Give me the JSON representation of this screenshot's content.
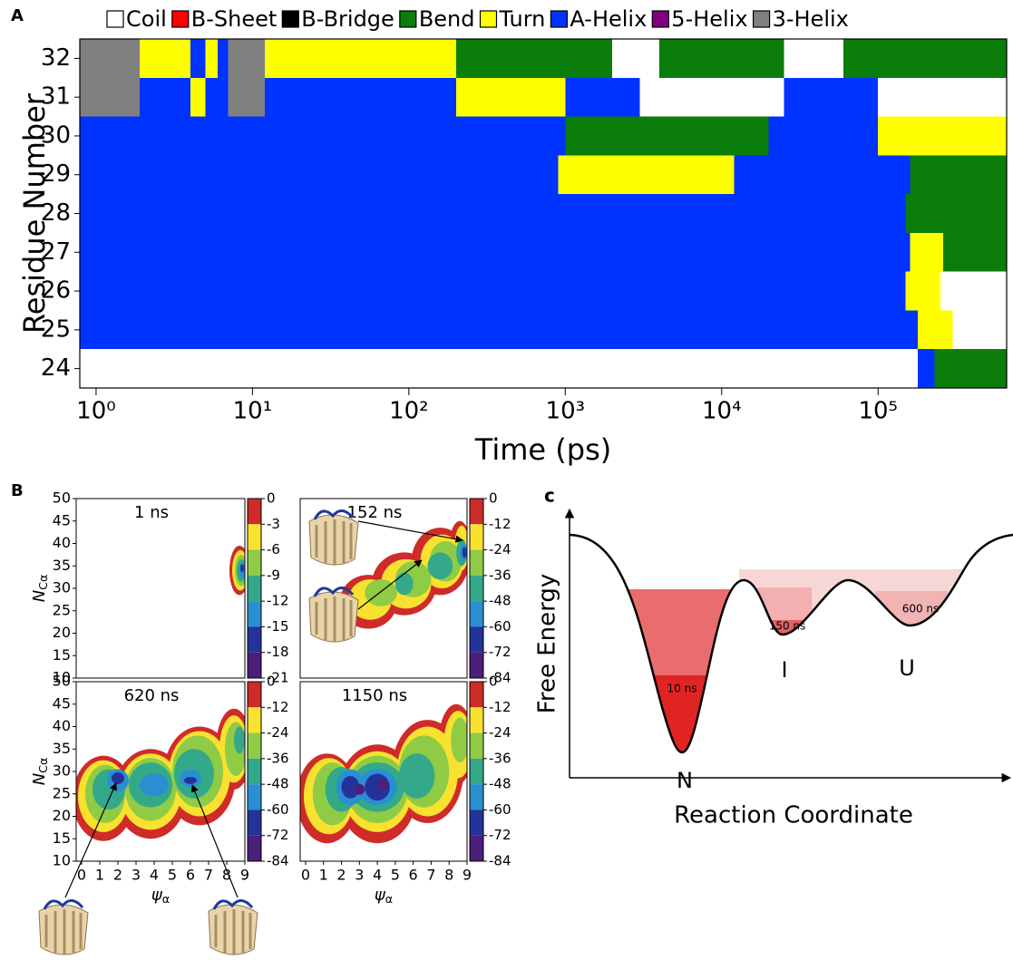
{
  "chart_data": [
    {
      "type": "heatmap",
      "panel_label": "A",
      "y_label": "Residue Number",
      "x_label": "Time (ps)",
      "log_x": true,
      "xlim": [
        0.787,
        664000
      ],
      "xticks": [
        {
          "value": 1,
          "label": "10⁰"
        },
        {
          "value": 10,
          "label": "10¹"
        },
        {
          "value": 100,
          "label": "10²"
        },
        {
          "value": 1000,
          "label": "10³"
        },
        {
          "value": 10000,
          "label": "10⁴"
        },
        {
          "value": 100000,
          "label": "10⁵"
        }
      ],
      "ylim": [
        23.5,
        32.5
      ],
      "yticks": [
        24,
        25,
        26,
        27,
        28,
        29,
        30,
        31,
        32
      ],
      "legend": {
        "labels": [
          "Coil",
          "B-Sheet",
          "B-Bridge",
          "Bend",
          "Turn",
          "A-Helix",
          "5-Helix",
          "3-Helix"
        ],
        "colors": [
          "#ffffff",
          "#ff0000",
          "#000000",
          "#0a7d0a",
          "#ffff00",
          "#0033ff",
          "#800080",
          "#808080"
        ]
      },
      "rows": [
        {
          "residue": 24,
          "segments": [
            {
              "start": 0.787,
              "end": 180000,
              "state": "Coil"
            },
            {
              "start": 180000,
              "end": 230000,
              "state": "A-Helix"
            },
            {
              "start": 230000,
              "end": 664000,
              "state": "Bend"
            }
          ]
        },
        {
          "residue": 25,
          "segments": [
            {
              "start": 0.787,
              "end": 180000,
              "state": "A-Helix"
            },
            {
              "start": 180000,
              "end": 300000,
              "state": "Turn"
            },
            {
              "start": 300000,
              "end": 664000,
              "state": "Coil"
            }
          ]
        },
        {
          "residue": 26,
          "segments": [
            {
              "start": 0.787,
              "end": 150000,
              "state": "A-Helix"
            },
            {
              "start": 150000,
              "end": 250000,
              "state": "Turn"
            },
            {
              "start": 250000,
              "end": 664000,
              "state": "Coil"
            }
          ]
        },
        {
          "residue": 27,
          "segments": [
            {
              "start": 0.787,
              "end": 160000,
              "state": "A-Helix"
            },
            {
              "start": 160000,
              "end": 260000,
              "state": "Turn"
            },
            {
              "start": 260000,
              "end": 664000,
              "state": "Bend"
            }
          ]
        },
        {
          "residue": 28,
          "segments": [
            {
              "start": 0.787,
              "end": 150000,
              "state": "A-Helix"
            },
            {
              "start": 150000,
              "end": 664000,
              "state": "Bend"
            }
          ]
        },
        {
          "residue": 29,
          "segments": [
            {
              "start": 0.787,
              "end": 900,
              "state": "A-Helix"
            },
            {
              "start": 900,
              "end": 12000,
              "state": "Turn"
            },
            {
              "start": 12000,
              "end": 160000,
              "state": "A-Helix"
            },
            {
              "start": 160000,
              "end": 664000,
              "state": "Bend"
            }
          ]
        },
        {
          "residue": 30,
          "segments": [
            {
              "start": 0.787,
              "end": 1000,
              "state": "A-Helix"
            },
            {
              "start": 1000,
              "end": 20000,
              "state": "Bend"
            },
            {
              "start": 20000,
              "end": 100000,
              "state": "A-Helix"
            },
            {
              "start": 100000,
              "end": 664000,
              "state": "Turn"
            }
          ]
        },
        {
          "residue": 31,
          "segments": [
            {
              "start": 0.787,
              "end": 1.9,
              "state": "3-Helix"
            },
            {
              "start": 1.9,
              "end": 4,
              "state": "A-Helix"
            },
            {
              "start": 4,
              "end": 5,
              "state": "Turn"
            },
            {
              "start": 5,
              "end": 7,
              "state": "A-Helix"
            },
            {
              "start": 7,
              "end": 12,
              "state": "3-Helix"
            },
            {
              "start": 12,
              "end": 200,
              "state": "A-Helix"
            },
            {
              "start": 200,
              "end": 1000,
              "state": "Turn"
            },
            {
              "start": 1000,
              "end": 3000,
              "state": "A-Helix"
            },
            {
              "start": 3000,
              "end": 25000,
              "state": "Coil"
            },
            {
              "start": 25000,
              "end": 100000,
              "state": "A-Helix"
            },
            {
              "start": 100000,
              "end": 664000,
              "state": "Coil"
            }
          ]
        },
        {
          "residue": 32,
          "segments": [
            {
              "start": 0.787,
              "end": 1.9,
              "state": "3-Helix"
            },
            {
              "start": 1.9,
              "end": 4,
              "state": "Turn"
            },
            {
              "start": 4,
              "end": 5,
              "state": "A-Helix"
            },
            {
              "start": 5,
              "end": 6,
              "state": "Turn"
            },
            {
              "start": 6,
              "end": 7,
              "state": "A-Helix"
            },
            {
              "start": 7,
              "end": 12,
              "state": "3-Helix"
            },
            {
              "start": 12,
              "end": 200,
              "state": "Turn"
            },
            {
              "start": 200,
              "end": 2000,
              "state": "Bend"
            },
            {
              "start": 2000,
              "end": 4000,
              "state": "Coil"
            },
            {
              "start": 4000,
              "end": 25000,
              "state": "Bend"
            },
            {
              "start": 25000,
              "end": 60000,
              "state": "Coil"
            },
            {
              "start": 60000,
              "end": 664000,
              "state": "Bend"
            }
          ]
        }
      ]
    },
    {
      "type": "contour",
      "panel_label": "B",
      "title": "1 ns",
      "y_label": "N",
      "y_label_sub": "Cα",
      "xlim": [
        -0.3,
        9
      ],
      "ylim": [
        10,
        50
      ],
      "yticks": [
        10,
        15,
        20,
        25,
        30,
        35,
        40,
        45,
        50
      ],
      "clim": [
        -21,
        0
      ],
      "cticks": [
        0,
        -3,
        -6,
        -9,
        -12,
        -15,
        -18,
        -21
      ],
      "colors": [
        "#cf2b28",
        "#f8e22f",
        "#8fcb45",
        "#33a98a",
        "#2a8fd0",
        "#24339a",
        "#4b1f7a"
      ],
      "blobs": [
        {
          "x": 8.7,
          "y": 34,
          "rx": 0.55,
          "ry": 5.5,
          "level": 0
        },
        {
          "x": 8.75,
          "y": 34,
          "rx": 0.45,
          "ry": 4.5,
          "level": -3
        },
        {
          "x": 8.8,
          "y": 34,
          "rx": 0.35,
          "ry": 3.5,
          "level": -6
        },
        {
          "x": 8.8,
          "y": 34,
          "rx": 0.25,
          "ry": 2.5,
          "level": -9
        },
        {
          "x": 8.85,
          "y": 34,
          "rx": 0.18,
          "ry": 1.6,
          "level": -12
        },
        {
          "x": 8.85,
          "y": 34.5,
          "rx": 0.1,
          "ry": 0.9,
          "level": -15
        }
      ]
    },
    {
      "type": "contour",
      "title": "152 ns",
      "xlim": [
        -0.3,
        9
      ],
      "ylim": [
        10,
        50
      ],
      "clim": [
        -84,
        0
      ],
      "cticks": [
        0,
        -12,
        -24,
        -36,
        -48,
        -60,
        -72,
        -84
      ],
      "colors": [
        "#cf2b28",
        "#f8e22f",
        "#8fcb45",
        "#33a98a",
        "#2a8fd0",
        "#24339a",
        "#4b1f7a"
      ],
      "blobs": [
        {
          "x": 3.5,
          "y": 27,
          "rx": 1.6,
          "ry": 6,
          "level": 0
        },
        {
          "x": 5.5,
          "y": 31,
          "rx": 1.8,
          "ry": 7,
          "level": 0
        },
        {
          "x": 7.5,
          "y": 36,
          "rx": 1.6,
          "ry": 7.5,
          "level": 0
        },
        {
          "x": 8.6,
          "y": 39,
          "rx": 0.6,
          "ry": 6,
          "level": 0
        },
        {
          "x": 3.6,
          "y": 27.5,
          "rx": 1.2,
          "ry": 4.5,
          "level": -12
        },
        {
          "x": 5.6,
          "y": 31,
          "rx": 1.4,
          "ry": 5.5,
          "level": -12
        },
        {
          "x": 7.6,
          "y": 36,
          "rx": 1.2,
          "ry": 6,
          "level": -12
        },
        {
          "x": 8.7,
          "y": 39,
          "rx": 0.4,
          "ry": 5,
          "level": -12
        },
        {
          "x": 4.2,
          "y": 29,
          "rx": 0.9,
          "ry": 3,
          "level": -24
        },
        {
          "x": 6,
          "y": 32,
          "rx": 1,
          "ry": 4,
          "level": -24
        },
        {
          "x": 7.8,
          "y": 36,
          "rx": 0.9,
          "ry": 4.5,
          "level": -24
        },
        {
          "x": 5.5,
          "y": 31,
          "rx": 0.5,
          "ry": 2.5,
          "level": -36
        },
        {
          "x": 7.5,
          "y": 35,
          "rx": 0.7,
          "ry": 3,
          "level": -36
        },
        {
          "x": 8.7,
          "y": 38,
          "rx": 0.3,
          "ry": 3,
          "level": -36
        },
        {
          "x": 8.8,
          "y": 38,
          "rx": 0.2,
          "ry": 2,
          "level": -48
        },
        {
          "x": 8.85,
          "y": 38,
          "rx": 0.12,
          "ry": 1.2,
          "level": -60
        }
      ]
    },
    {
      "type": "contour",
      "title": "620 ns",
      "y_label": "N",
      "y_label_sub": "Cα",
      "x_label": "ψ",
      "x_label_sub": "α",
      "xlim": [
        -0.3,
        9
      ],
      "ylim": [
        10,
        50
      ],
      "yticks": [
        10,
        15,
        20,
        25,
        30,
        35,
        40,
        45,
        50
      ],
      "xticks": [
        0,
        1,
        2,
        3,
        4,
        5,
        6,
        7,
        8,
        9
      ],
      "clim": [
        -84,
        0
      ],
      "cticks": [
        0,
        -12,
        -24,
        -36,
        -48,
        -60,
        -72,
        -84
      ],
      "colors": [
        "#cf2b28",
        "#f8e22f",
        "#8fcb45",
        "#33a98a",
        "#2a8fd0",
        "#24339a",
        "#4b1f7a"
      ],
      "blobs": [
        {
          "x": 1.2,
          "y": 24,
          "rx": 1.7,
          "ry": 9.5,
          "level": 0
        },
        {
          "x": 3.8,
          "y": 25,
          "rx": 2,
          "ry": 10,
          "level": 0
        },
        {
          "x": 6.5,
          "y": 29,
          "rx": 2,
          "ry": 11,
          "level": 0
        },
        {
          "x": 8.4,
          "y": 35,
          "rx": 1,
          "ry": 9,
          "level": 0
        },
        {
          "x": 1.2,
          "y": 24.5,
          "rx": 1.4,
          "ry": 8,
          "level": -12
        },
        {
          "x": 3.8,
          "y": 25.5,
          "rx": 1.7,
          "ry": 8.5,
          "level": -12
        },
        {
          "x": 6.5,
          "y": 29.5,
          "rx": 1.7,
          "ry": 9.5,
          "level": -12
        },
        {
          "x": 8.4,
          "y": 35,
          "rx": 0.8,
          "ry": 7.5,
          "level": -12
        },
        {
          "x": 1.3,
          "y": 25,
          "rx": 1.1,
          "ry": 6.5,
          "level": -24
        },
        {
          "x": 3.8,
          "y": 26,
          "rx": 1.4,
          "ry": 7,
          "level": -24
        },
        {
          "x": 6.4,
          "y": 30,
          "rx": 1.4,
          "ry": 8,
          "level": -24
        },
        {
          "x": 8.5,
          "y": 35,
          "rx": 0.6,
          "ry": 6,
          "level": -24
        },
        {
          "x": 1.5,
          "y": 26,
          "rx": 0.9,
          "ry": 4.5,
          "level": -36
        },
        {
          "x": 3.8,
          "y": 27,
          "rx": 1.2,
          "ry": 5,
          "level": -36
        },
        {
          "x": 6.2,
          "y": 29.5,
          "rx": 1.1,
          "ry": 5.5,
          "level": -36
        },
        {
          "x": 8.7,
          "y": 37,
          "rx": 0.3,
          "ry": 3,
          "level": -36
        },
        {
          "x": 2,
          "y": 28,
          "rx": 0.6,
          "ry": 2.5,
          "level": -48
        },
        {
          "x": 4,
          "y": 27,
          "rx": 0.8,
          "ry": 2.5,
          "level": -48
        },
        {
          "x": 6,
          "y": 28.5,
          "rx": 0.6,
          "ry": 2,
          "level": -48
        },
        {
          "x": 2,
          "y": 28.5,
          "rx": 0.35,
          "ry": 1.3,
          "level": -60
        },
        {
          "x": 6,
          "y": 28,
          "rx": 0.35,
          "ry": 0.8,
          "level": -60
        }
      ]
    },
    {
      "type": "contour",
      "title": "1150 ns",
      "x_label": "ψ",
      "x_label_sub": "α",
      "xlim": [
        -0.3,
        9
      ],
      "ylim": [
        10,
        50
      ],
      "xticks": [
        0,
        1,
        2,
        3,
        4,
        5,
        6,
        7,
        8,
        9
      ],
      "clim": [
        -84,
        0
      ],
      "cticks": [
        0,
        -12,
        -24,
        -36,
        -48,
        -60,
        -72,
        -84
      ],
      "colors": [
        "#cf2b28",
        "#f8e22f",
        "#8fcb45",
        "#33a98a",
        "#2a8fd0",
        "#24339a",
        "#4b1f7a"
      ],
      "blobs": [
        {
          "x": 1.2,
          "y": 24,
          "rx": 1.7,
          "ry": 10,
          "level": 0
        },
        {
          "x": 4,
          "y": 25,
          "rx": 2.2,
          "ry": 11,
          "level": 0
        },
        {
          "x": 6.8,
          "y": 30,
          "rx": 2,
          "ry": 11.5,
          "level": 0
        },
        {
          "x": 8.4,
          "y": 36,
          "rx": 1,
          "ry": 9,
          "level": 0
        },
        {
          "x": 1.3,
          "y": 24.5,
          "rx": 1.4,
          "ry": 8.5,
          "level": -12
        },
        {
          "x": 4,
          "y": 25.5,
          "rx": 1.9,
          "ry": 9,
          "level": -12
        },
        {
          "x": 6.8,
          "y": 30,
          "rx": 1.7,
          "ry": 10,
          "level": -12
        },
        {
          "x": 8.5,
          "y": 36,
          "rx": 0.8,
          "ry": 7.5,
          "level": -12
        },
        {
          "x": 1.5,
          "y": 25,
          "rx": 1.1,
          "ry": 7,
          "level": -24
        },
        {
          "x": 4,
          "y": 26,
          "rx": 1.7,
          "ry": 7.5,
          "level": -24
        },
        {
          "x": 6.6,
          "y": 30,
          "rx": 1.4,
          "ry": 8,
          "level": -24
        },
        {
          "x": 8.6,
          "y": 37,
          "rx": 0.5,
          "ry": 5,
          "level": -24
        },
        {
          "x": 2,
          "y": 26,
          "rx": 0.9,
          "ry": 5,
          "level": -36
        },
        {
          "x": 4,
          "y": 26.5,
          "rx": 1.5,
          "ry": 5.5,
          "level": -36
        },
        {
          "x": 6.2,
          "y": 29,
          "rx": 1,
          "ry": 5,
          "level": -36
        },
        {
          "x": 2.5,
          "y": 26.5,
          "rx": 0.8,
          "ry": 4,
          "level": -48
        },
        {
          "x": 4,
          "y": 26.5,
          "rx": 1.1,
          "ry": 4,
          "level": -48
        },
        {
          "x": 2.5,
          "y": 26.5,
          "rx": 0.5,
          "ry": 2.5,
          "level": -60
        },
        {
          "x": 4,
          "y": 26.5,
          "rx": 0.7,
          "ry": 3,
          "level": -60
        },
        {
          "x": 3,
          "y": 26,
          "rx": 0.3,
          "ry": 1.2,
          "level": -72
        },
        {
          "x": 4.3,
          "y": 27,
          "rx": 0.3,
          "ry": 1.3,
          "level": -72
        }
      ]
    }
  ],
  "diagram": {
    "panel_label": "c",
    "y_label": "Free Energy",
    "x_label": "Reaction Coordinate",
    "states": [
      "N",
      "I",
      "U"
    ],
    "times": [
      "10 ns",
      "150 ns",
      "600 ns"
    ]
  }
}
